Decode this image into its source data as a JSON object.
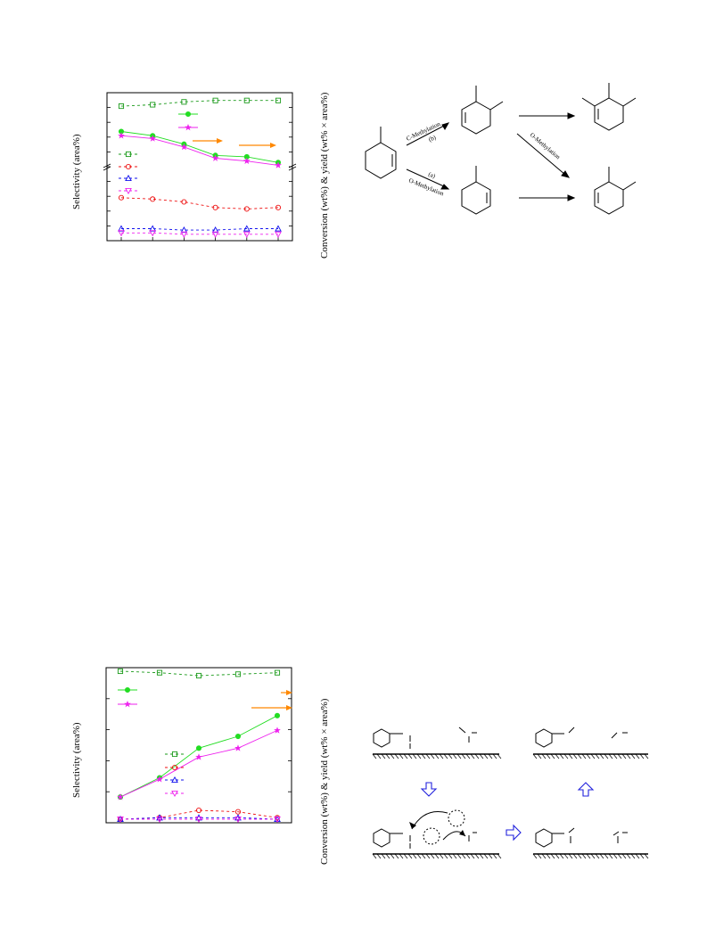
{
  "page": {
    "type": "paper-figure-page"
  },
  "labels": {
    "selectivity_axis_1": "Selectivity (area%)",
    "conversion_axis_1": "Conversion (wt%) & yield (wt% × area%)",
    "selectivity_axis_2": "Selectivity (area%)",
    "conversion_axis_2": "Conversion (wt%) & yield (wt% × area%)"
  },
  "scheme": {
    "c_methylation": "C-Methylation",
    "path_b": "(b)",
    "path_a": "(a)",
    "o_methylation_lower": "O-Methylation",
    "o_methylation_diag": "O-Methylation"
  },
  "colors": {
    "green_dashed": "#1a9a1a",
    "green_solid": "#22dd22",
    "red": "#ee1111",
    "blue": "#1111ee",
    "magenta": "#ee22ee",
    "orange": "#ff8800",
    "mechanism_arrow": "#2222dd"
  },
  "chart_data": [
    {
      "type": "line",
      "x": [
        1,
        2,
        3,
        4,
        5,
        6
      ],
      "series": [
        {
          "values": [
            93,
            94,
            96,
            97,
            97,
            97
          ]
        },
        {
          "values": [
            75,
            72,
            66,
            58,
            57,
            53
          ]
        },
        {
          "values": [
            72,
            70,
            64,
            56,
            54,
            51
          ]
        },
        {
          "values": [
            28,
            27,
            25,
            21,
            20,
            21
          ]
        },
        {
          "values": [
            6,
            6,
            5,
            5,
            6,
            6
          ]
        },
        {
          "values": [
            3,
            3,
            2,
            2,
            2,
            2
          ]
        }
      ],
      "grid": false
    },
    {
      "type": "line",
      "x": [
        1,
        2,
        3,
        4,
        5
      ],
      "series": [
        {
          "values": [
            100,
            99,
            97,
            98,
            99
          ]
        },
        {
          "values": [
            15,
            28,
            48,
            56,
            70
          ]
        },
        {
          "values": [
            15,
            27,
            42,
            48,
            60
          ]
        },
        {
          "values": [
            0,
            1,
            6,
            5,
            1
          ]
        },
        {
          "values": [
            0,
            1,
            1,
            1,
            0
          ]
        },
        {
          "values": [
            0,
            0,
            0,
            0,
            0
          ]
        }
      ],
      "grid": false
    }
  ]
}
